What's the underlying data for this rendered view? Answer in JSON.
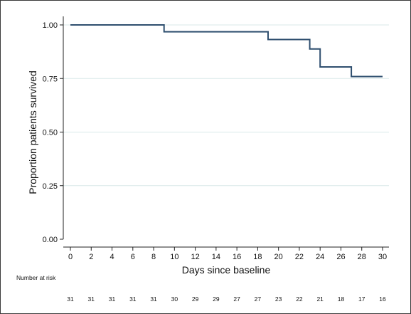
{
  "chart_data": {
    "type": "line",
    "step": true,
    "xlabel": "Days since baseline",
    "ylabel": "Proportion patients survived",
    "xlim": [
      0,
      30
    ],
    "ylim": [
      0,
      1
    ],
    "xticks": [
      "0",
      "2",
      "4",
      "6",
      "8",
      "10",
      "12",
      "14",
      "16",
      "18",
      "20",
      "22",
      "24",
      "26",
      "28",
      "30"
    ],
    "yticks": [
      "0.00",
      "0.25",
      "0.50",
      "0.75",
      "1.00"
    ],
    "grid": "horizontal",
    "series": [
      {
        "color": "#2f4f6f",
        "x": [
          0,
          9,
          9,
          19,
          19,
          23,
          23,
          24,
          24,
          27,
          27,
          30
        ],
        "y": [
          1.0,
          1.0,
          0.968,
          0.968,
          0.932,
          0.932,
          0.888,
          0.888,
          0.804,
          0.804,
          0.759,
          0.759
        ]
      }
    ],
    "risk_table": {
      "title": "Number at risk",
      "values": [
        "31",
        "31",
        "31",
        "31",
        "31",
        "30",
        "29",
        "29",
        "27",
        "27",
        "23",
        "22",
        "21",
        "18",
        "17",
        "16"
      ]
    }
  }
}
